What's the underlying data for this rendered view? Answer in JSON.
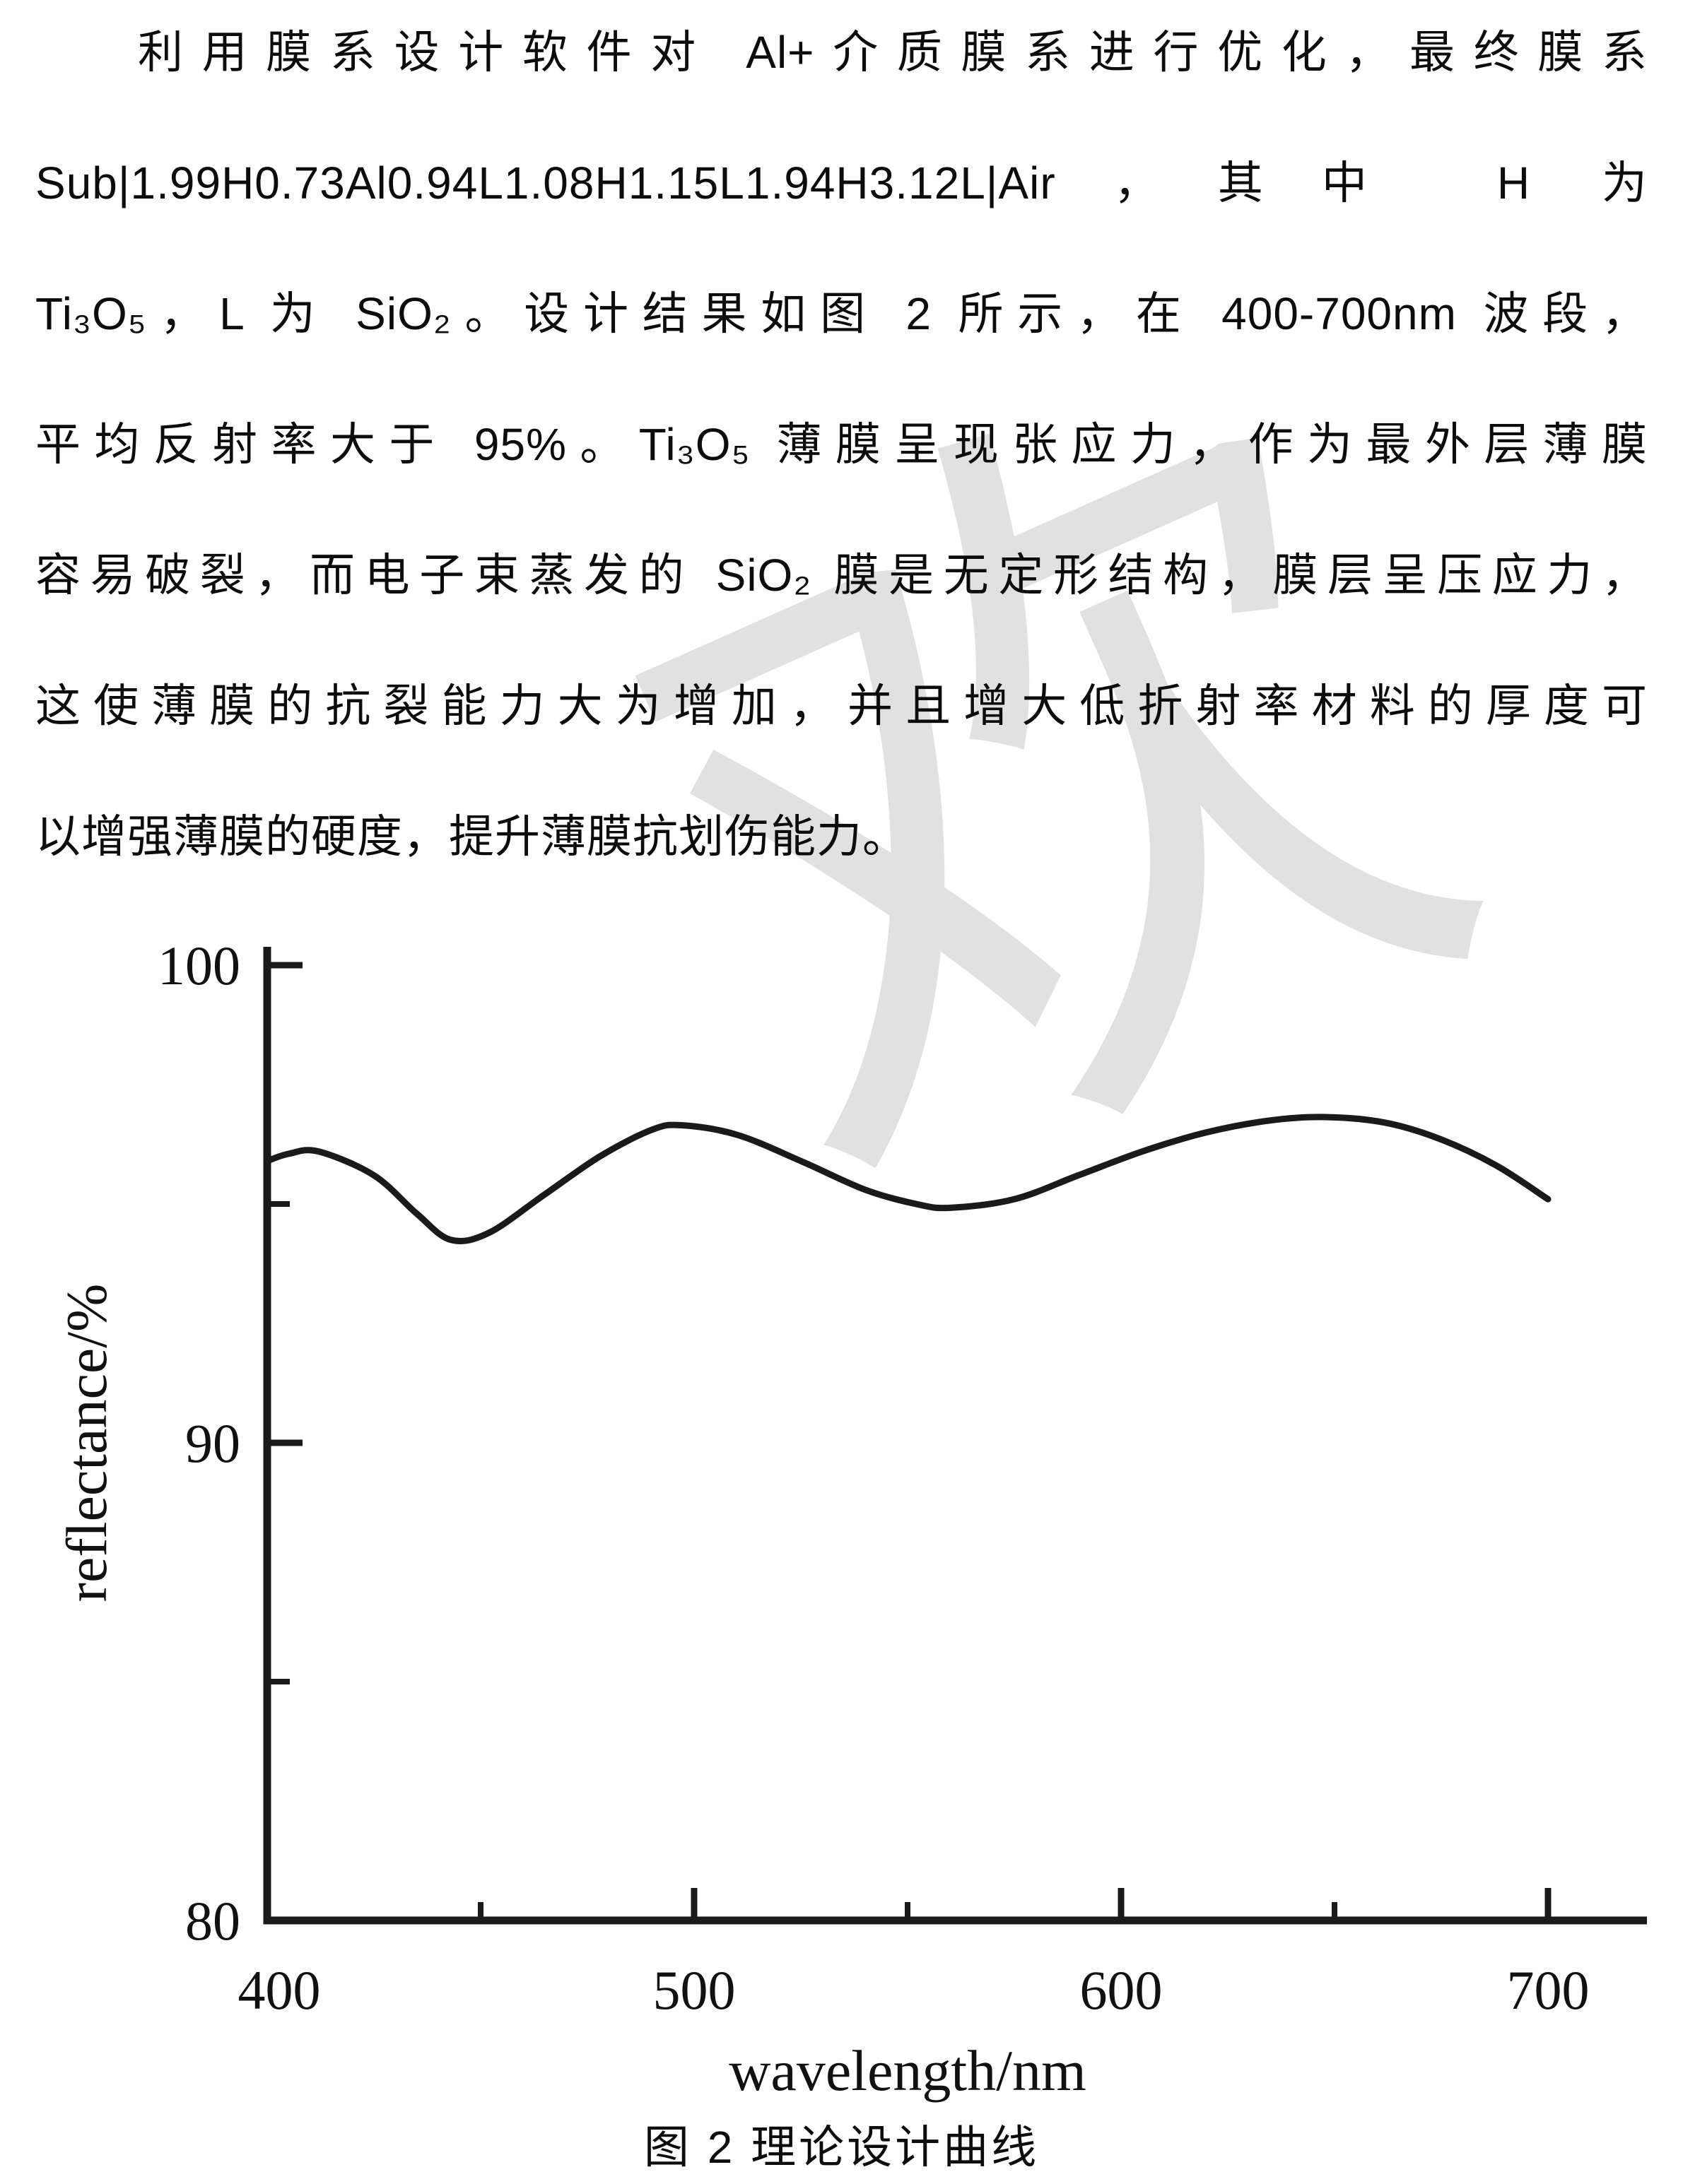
{
  "page": {
    "watermark_text": "欢",
    "watermark_color": "#d7d7d7",
    "text_color": "#0c0c0c",
    "background_color": "#ffffff"
  },
  "paragraph": {
    "lines": [
      "利用膜系设计软件对 Al+介质膜系进行优化，最终膜系",
      "Sub|1.99H0.73Al0.94L1.08H1.15L1.94H3.12L|Air，其中 H 为",
      "Ti₃O₅，L 为 SiO₂。设计结果如图 2 所示，在 400-700nm 波段，",
      "平均反射率大于 95%。Ti₃O₅ 薄膜呈现张应力，作为最外层薄膜",
      "容易破裂，而电子束蒸发的 SiO₂ 膜是无定形结构，膜层呈压应力，",
      "这使薄膜的抗裂能力大为增加，并且增大低折射率材料的厚度可",
      "以增强薄膜的硬度，提升薄膜抗划伤能力。"
    ]
  },
  "figure": {
    "caption": "图 2 理论设计曲线"
  },
  "chart_data": {
    "type": "line",
    "title": "",
    "xlabel": "wavelength/nm",
    "ylabel": "reflectance/%",
    "xlim": [
      400,
      700
    ],
    "ylim": [
      80,
      100
    ],
    "x_major_ticks": [
      400,
      500,
      600,
      700
    ],
    "x_minor_ticks": [
      450,
      550,
      650
    ],
    "y_major_ticks": [
      80,
      90,
      100
    ],
    "y_minor_ticks": [
      85,
      95
    ],
    "grid": false,
    "legend": "none",
    "line_color": "#1a1a1a",
    "axis_color": "#1a1a1a",
    "series": [
      {
        "name": "theoretical design reflectance",
        "x": [
          400,
          405,
          412,
          425,
          435,
          443,
          452,
          465,
          478,
          490,
          497,
          510,
          525,
          540,
          552,
          560,
          575,
          590,
          605,
          620,
          635,
          648,
          662,
          675,
          688,
          700
        ],
        "y": [
          95.9,
          96.05,
          96.1,
          95.6,
          94.8,
          94.25,
          94.4,
          95.2,
          96.0,
          96.55,
          96.65,
          96.45,
          95.9,
          95.3,
          95.0,
          94.92,
          95.1,
          95.6,
          96.1,
          96.5,
          96.75,
          96.82,
          96.7,
          96.35,
          95.8,
          95.1
        ]
      }
    ]
  }
}
